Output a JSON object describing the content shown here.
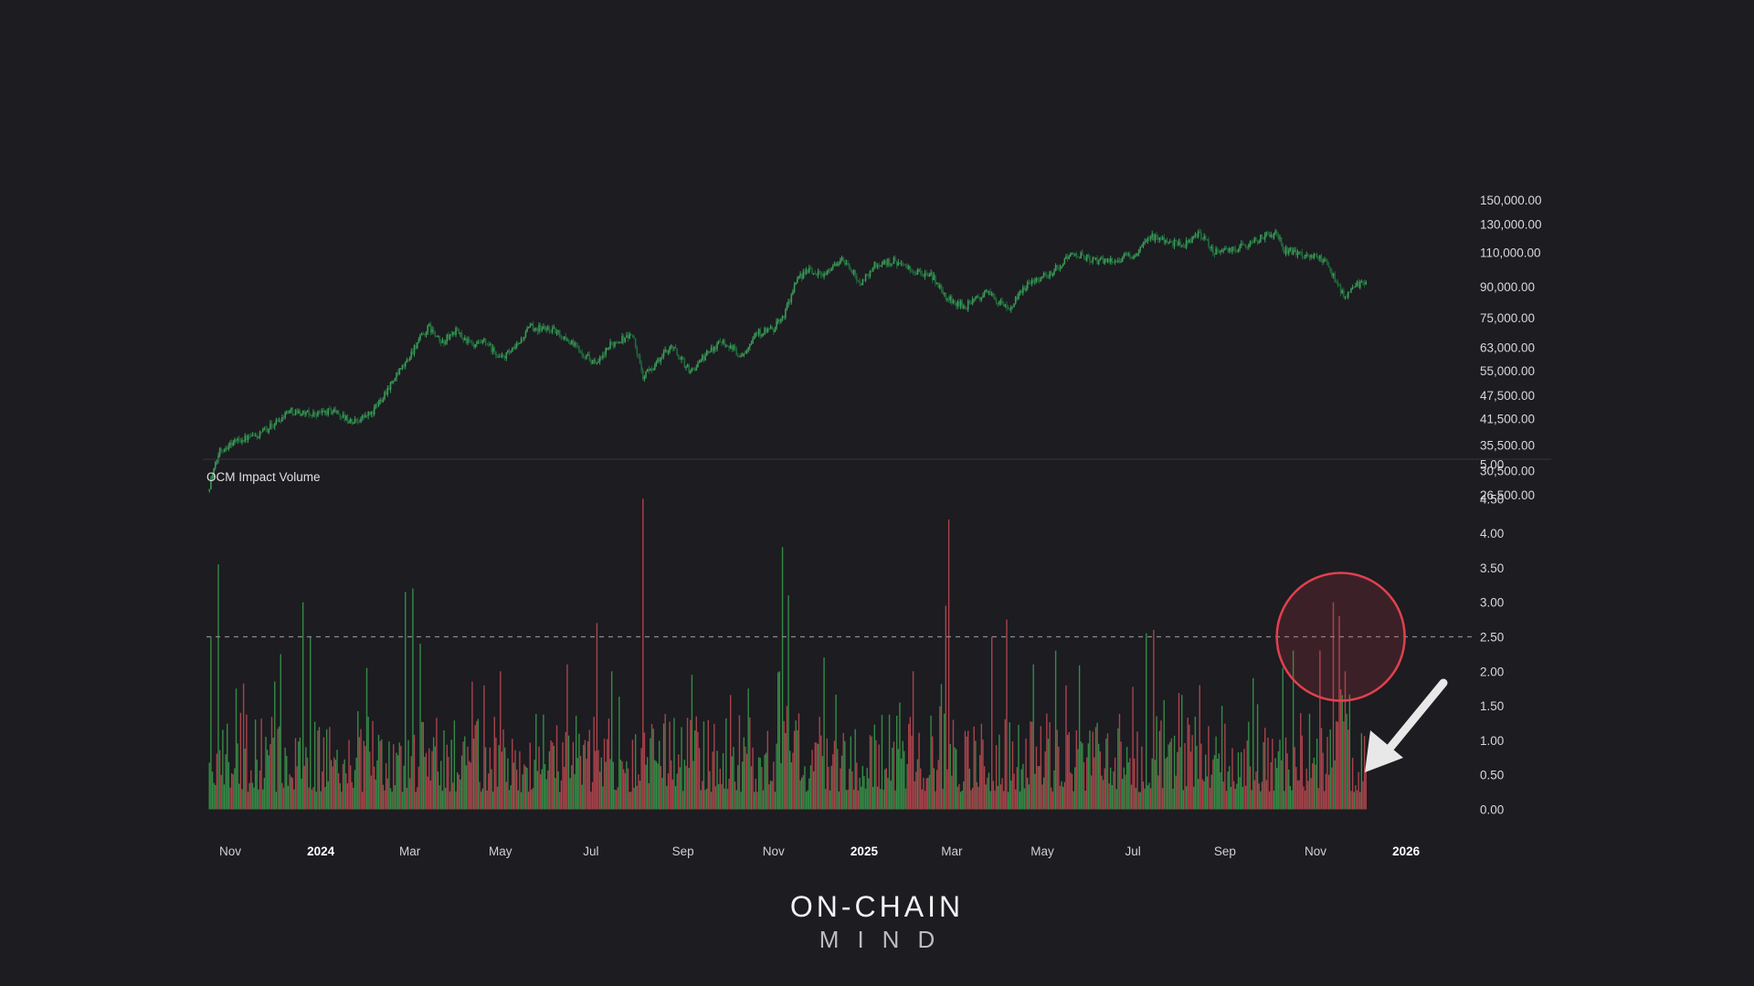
{
  "chart_data": [
    {
      "type": "candlestick",
      "title": "",
      "scale": "log",
      "ylim": [
        26500,
        140000
      ],
      "y_ticks": [
        "26,500.00",
        "30,500.00",
        "35,500.00",
        "41,500.00",
        "47,500.00",
        "55,000.00",
        "63,000.00",
        "75,000.00",
        "90,000.00",
        "110,000.00",
        "130,000.00",
        "150,000.00"
      ],
      "x_range": [
        "2023-10-18",
        "2025-12-05"
      ],
      "color": "#3c9a58",
      "series": [
        {
          "x": [
            "2023-10-18",
            "2023-10-25",
            "2023-11-05",
            "2023-11-20",
            "2023-12-05",
            "2023-12-10",
            "2023-12-25",
            "2024-01-10",
            "2024-01-22",
            "2024-02-05",
            "2024-02-15",
            "2024-02-28",
            "2024-03-05",
            "2024-03-14",
            "2024-03-22",
            "2024-04-01",
            "2024-04-13",
            "2024-04-20",
            "2024-05-01",
            "2024-05-10",
            "2024-05-21",
            "2024-06-05",
            "2024-06-15",
            "2024-06-28",
            "2024-07-05",
            "2024-07-15",
            "2024-07-29",
            "2024-08-05",
            "2024-08-15",
            "2024-08-24",
            "2024-09-06",
            "2024-09-15",
            "2024-09-27",
            "2024-10-10",
            "2024-10-20",
            "2024-11-01",
            "2024-11-08",
            "2024-11-15",
            "2024-11-22",
            "2024-12-05",
            "2024-12-17",
            "2024-12-30",
            "2025-01-08",
            "2025-01-21",
            "2025-02-03",
            "2025-02-15",
            "2025-02-26",
            "2025-03-10",
            "2025-03-25",
            "2025-04-08",
            "2025-04-22",
            "2025-05-05",
            "2025-05-22",
            "2025-06-05",
            "2025-06-22",
            "2025-07-03",
            "2025-07-14",
            "2025-07-25",
            "2025-08-03",
            "2025-08-14",
            "2025-08-25",
            "2025-09-06",
            "2025-09-18",
            "2025-10-06",
            "2025-10-10",
            "2025-10-20",
            "2025-11-01",
            "2025-11-08",
            "2025-11-14",
            "2025-11-21",
            "2025-11-28",
            "2025-12-05"
          ],
          "close": [
            28000,
            34500,
            36500,
            37500,
            41500,
            43500,
            42500,
            43500,
            40500,
            43000,
            49500,
            58000,
            64000,
            71000,
            64500,
            69500,
            63000,
            65000,
            59000,
            62000,
            71000,
            70000,
            66000,
            60000,
            57000,
            64500,
            68000,
            53000,
            58000,
            64000,
            54500,
            59500,
            66000,
            60000,
            68500,
            70000,
            76500,
            90000,
            99000,
            97000,
            106000,
            92000,
            102000,
            105000,
            98000,
            96500,
            84000,
            80000,
            87500,
            78000,
            93000,
            96500,
            110000,
            104500,
            106000,
            109000,
            121000,
            118000,
            114000,
            123000,
            111000,
            111500,
            117000,
            124000,
            112000,
            110000,
            108000,
            103000,
            94500,
            84000,
            91000,
            92500
          ]
        }
      ]
    },
    {
      "type": "bar",
      "title": "OCM Impact Volume",
      "ylim": [
        0,
        5
      ],
      "y_ticks": [
        "0.00",
        "0.50",
        "1.00",
        "1.50",
        "2.00",
        "2.50",
        "3.00",
        "3.50",
        "4.00",
        "4.50",
        "5.00"
      ],
      "threshold": 2.5,
      "threshold_label": "",
      "colors": {
        "up": "#3b9e4c",
        "down": "#c24a52"
      },
      "x_ticks": [
        {
          "label": "Nov",
          "date": "2023-11-01",
          "bold": false
        },
        {
          "label": "2024",
          "date": "2024-01-01",
          "bold": true
        },
        {
          "label": "Mar",
          "date": "2024-03-01",
          "bold": false
        },
        {
          "label": "May",
          "date": "2024-05-01",
          "bold": false
        },
        {
          "label": "Jul",
          "date": "2024-07-01",
          "bold": false
        },
        {
          "label": "Sep",
          "date": "2024-09-01",
          "bold": false
        },
        {
          "label": "Nov",
          "date": "2024-11-01",
          "bold": false
        },
        {
          "label": "2025",
          "date": "2025-01-01",
          "bold": true
        },
        {
          "label": "Mar",
          "date": "2025-03-01",
          "bold": false
        },
        {
          "label": "May",
          "date": "2025-05-01",
          "bold": false
        },
        {
          "label": "Jul",
          "date": "2025-07-01",
          "bold": false
        },
        {
          "label": "Sep",
          "date": "2025-09-01",
          "bold": false
        },
        {
          "label": "Nov",
          "date": "2025-11-01",
          "bold": false
        },
        {
          "label": "2026",
          "date": "2026-01-01",
          "bold": true
        }
      ],
      "spikes": [
        {
          "x": "2023-10-19",
          "value": 2.5,
          "dir": "up"
        },
        {
          "x": "2023-10-24",
          "value": 3.55,
          "dir": "up"
        },
        {
          "x": "2023-11-05",
          "value": 1.75,
          "dir": "up"
        },
        {
          "x": "2023-12-05",
          "value": 2.25,
          "dir": "up"
        },
        {
          "x": "2023-12-20",
          "value": 3.0,
          "dir": "up"
        },
        {
          "x": "2023-12-25",
          "value": 2.5,
          "dir": "up"
        },
        {
          "x": "2024-02-01",
          "value": 2.05,
          "dir": "up"
        },
        {
          "x": "2024-02-27",
          "value": 3.15,
          "dir": "up"
        },
        {
          "x": "2024-03-03",
          "value": 3.2,
          "dir": "up"
        },
        {
          "x": "2024-03-08",
          "value": 2.4,
          "dir": "up"
        },
        {
          "x": "2024-04-12",
          "value": 1.85,
          "dir": "down"
        },
        {
          "x": "2024-05-01",
          "value": 2.0,
          "dir": "down"
        },
        {
          "x": "2024-06-15",
          "value": 2.1,
          "dir": "down"
        },
        {
          "x": "2024-07-05",
          "value": 2.7,
          "dir": "down"
        },
        {
          "x": "2024-07-15",
          "value": 2.0,
          "dir": "up"
        },
        {
          "x": "2024-08-05",
          "value": 4.5,
          "dir": "down"
        },
        {
          "x": "2024-09-07",
          "value": 1.95,
          "dir": "up"
        },
        {
          "x": "2024-10-15",
          "value": 1.75,
          "dir": "up"
        },
        {
          "x": "2024-11-05",
          "value": 2.0,
          "dir": "up"
        },
        {
          "x": "2024-11-07",
          "value": 3.8,
          "dir": "up"
        },
        {
          "x": "2024-11-11",
          "value": 3.1,
          "dir": "up"
        },
        {
          "x": "2024-12-05",
          "value": 2.2,
          "dir": "up"
        },
        {
          "x": "2025-02-03",
          "value": 2.0,
          "dir": "down"
        },
        {
          "x": "2025-02-25",
          "value": 2.95,
          "dir": "down"
        },
        {
          "x": "2025-02-27",
          "value": 4.2,
          "dir": "down"
        },
        {
          "x": "2025-03-28",
          "value": 2.5,
          "dir": "down"
        },
        {
          "x": "2025-04-07",
          "value": 2.75,
          "dir": "down"
        },
        {
          "x": "2025-04-25",
          "value": 2.1,
          "dir": "up"
        },
        {
          "x": "2025-05-10",
          "value": 2.3,
          "dir": "up"
        },
        {
          "x": "2025-07-10",
          "value": 2.55,
          "dir": "up"
        },
        {
          "x": "2025-07-15",
          "value": 2.6,
          "dir": "down"
        },
        {
          "x": "2025-08-15",
          "value": 1.8,
          "dir": "down"
        },
        {
          "x": "2025-09-20",
          "value": 1.9,
          "dir": "up"
        },
        {
          "x": "2025-10-10",
          "value": 2.05,
          "dir": "up"
        },
        {
          "x": "2025-10-17",
          "value": 2.3,
          "dir": "up"
        },
        {
          "x": "2025-11-04",
          "value": 2.3,
          "dir": "down"
        },
        {
          "x": "2025-11-13",
          "value": 3.0,
          "dir": "down"
        },
        {
          "x": "2025-11-17",
          "value": 2.8,
          "dir": "down"
        },
        {
          "x": "2025-11-21",
          "value": 2.0,
          "dir": "down"
        }
      ]
    }
  ],
  "highlight_color": "#e2404d",
  "arrow_color": "#e8e8e8",
  "logo": {
    "line1": "ON-CHAIN",
    "line2": "MIND"
  }
}
